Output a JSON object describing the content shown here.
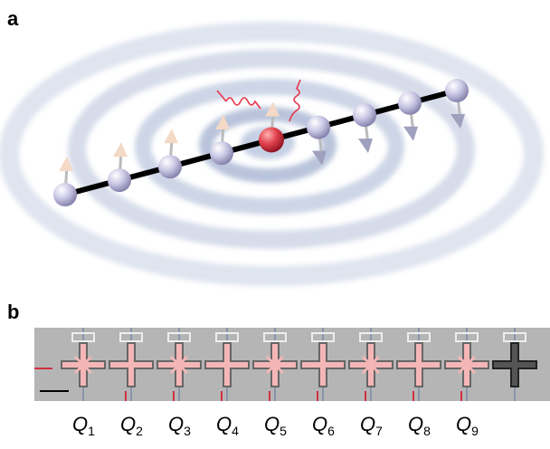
{
  "panel_a": {
    "label": "a"
  },
  "panel_b": {
    "label": "b",
    "qubits": [
      {
        "symbol": "Q",
        "subscript": "1"
      },
      {
        "symbol": "Q",
        "subscript": "2"
      },
      {
        "symbol": "Q",
        "subscript": "3"
      },
      {
        "symbol": "Q",
        "subscript": "4"
      },
      {
        "symbol": "Q",
        "subscript": "5"
      },
      {
        "symbol": "Q",
        "subscript": "6"
      },
      {
        "symbol": "Q",
        "subscript": "7"
      },
      {
        "symbol": "Q",
        "subscript": "8"
      },
      {
        "symbol": "Q",
        "subscript": "9"
      }
    ]
  }
}
